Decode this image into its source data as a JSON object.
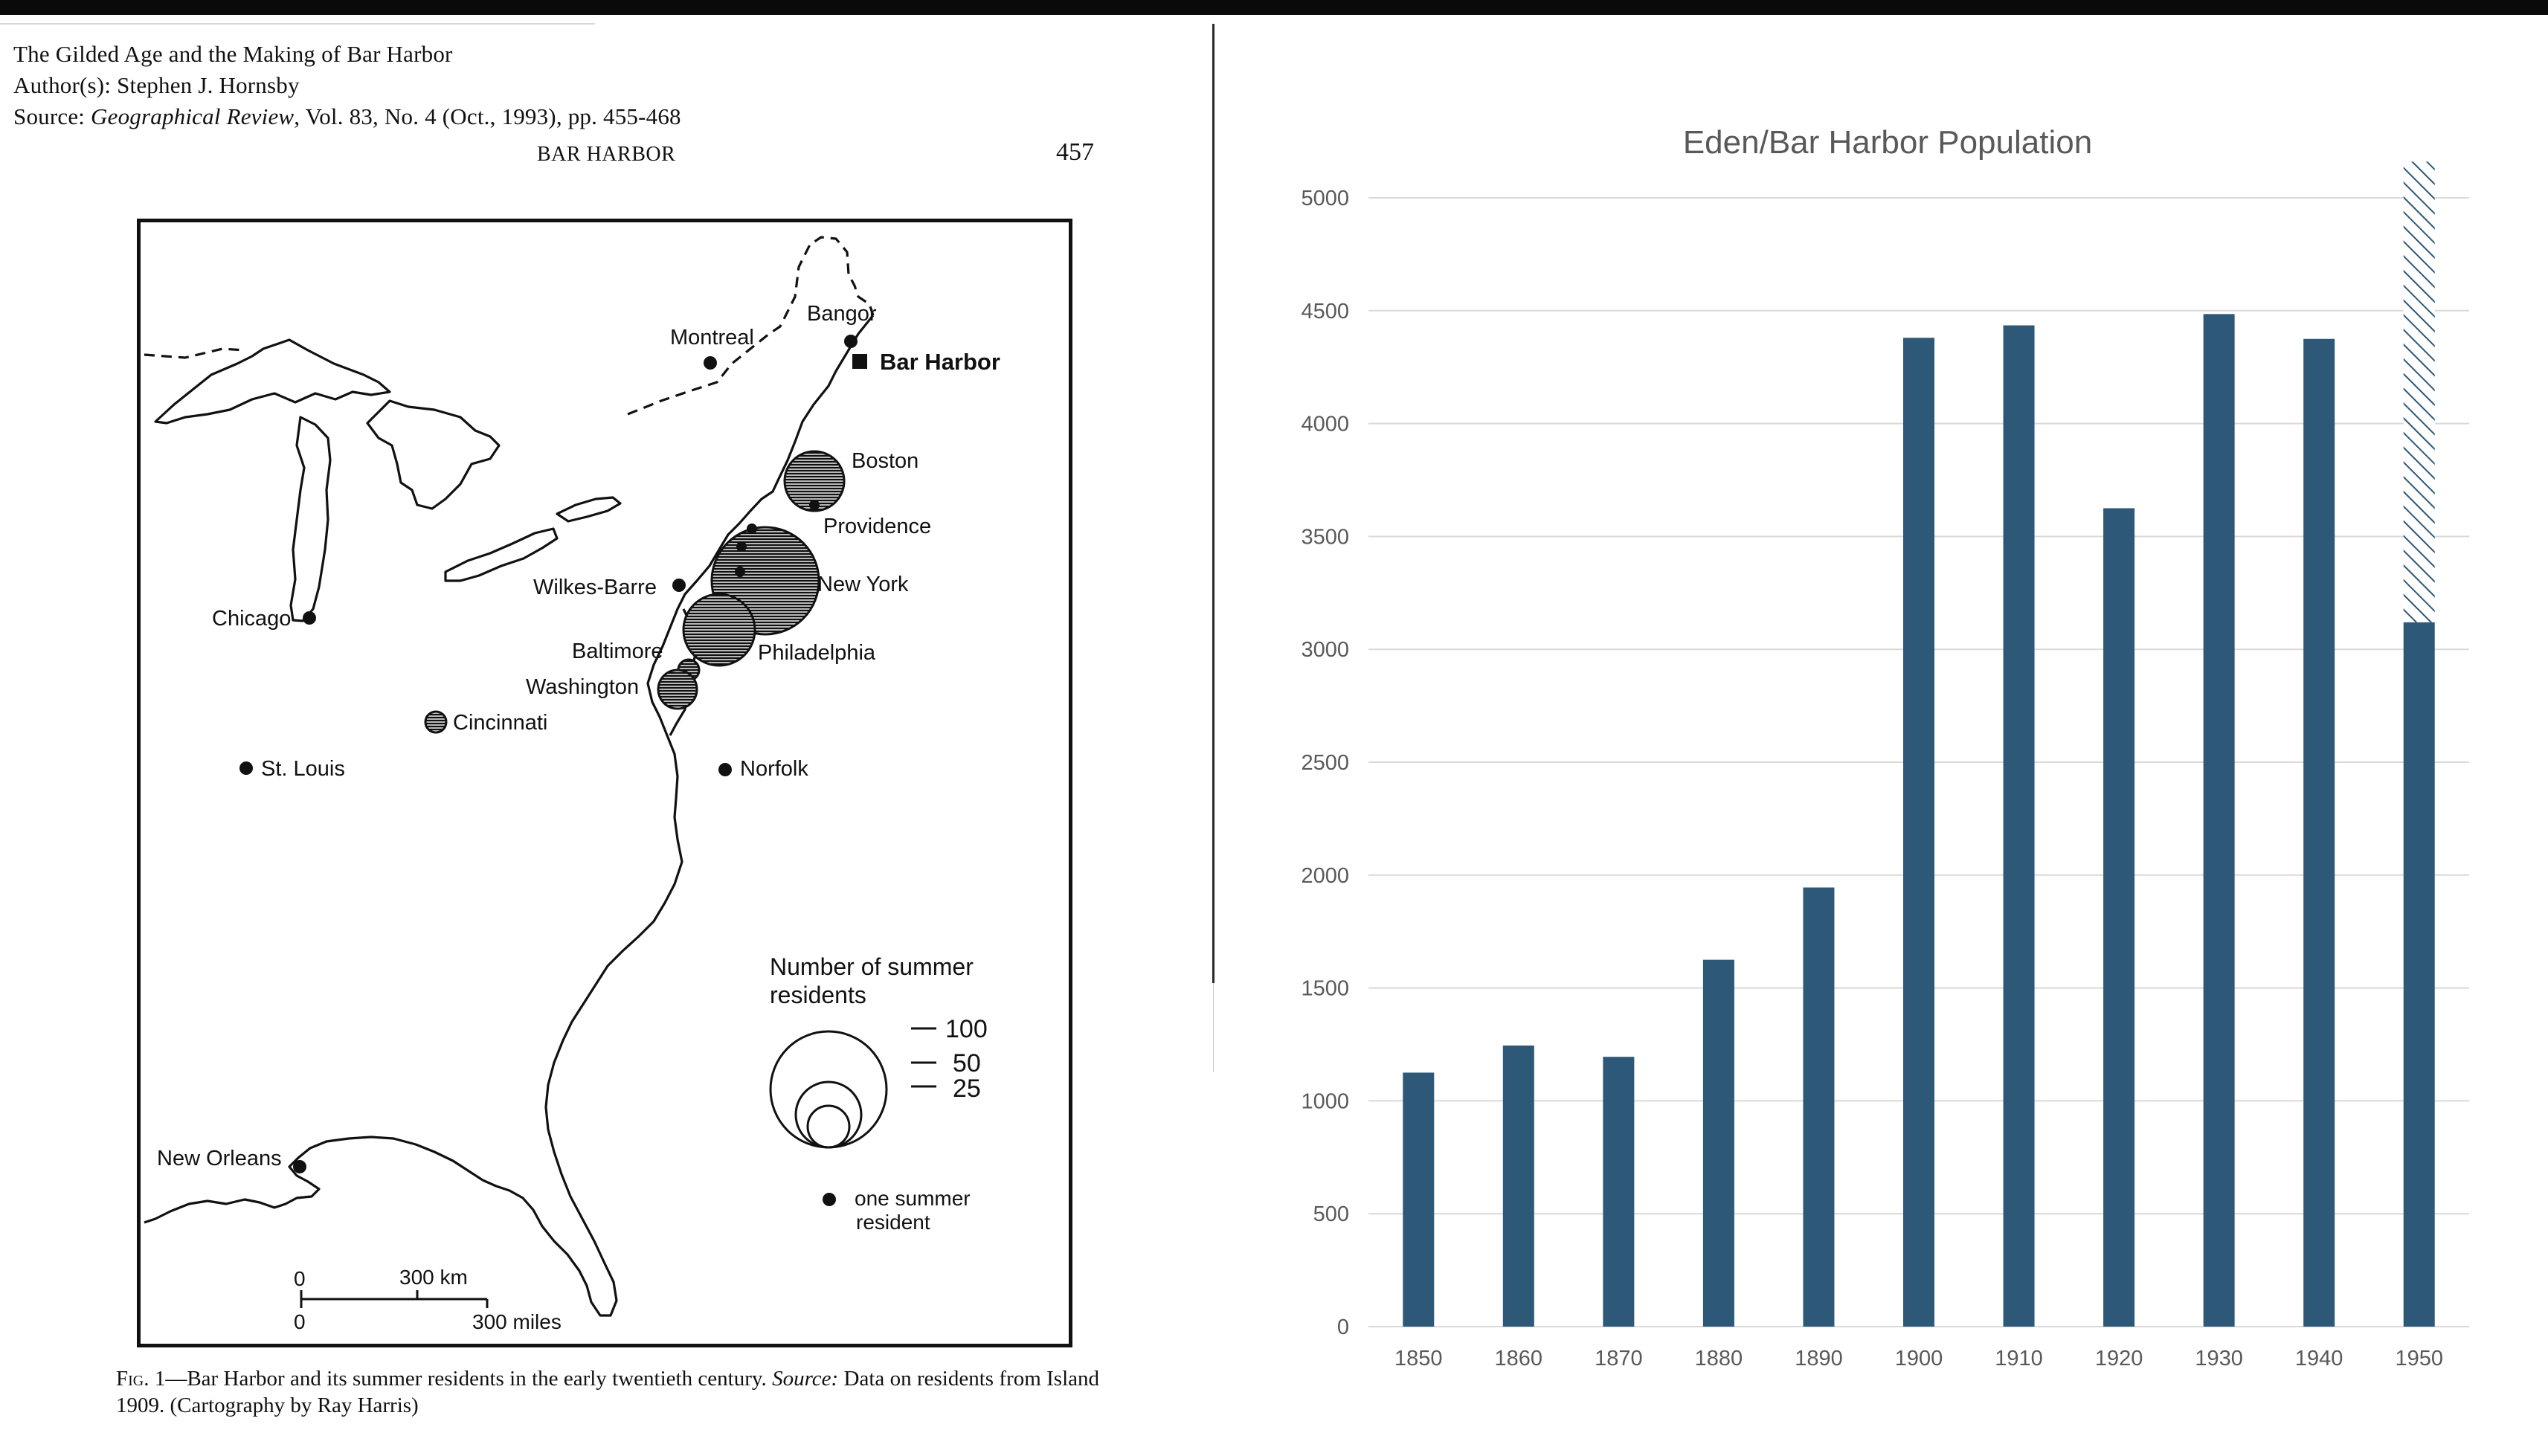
{
  "paper": {
    "title": "The Gilded Age and the Making of Bar Harbor",
    "authors": "Author(s): Stephen J. Hornsby",
    "source_prefix": "Source: ",
    "source_journal": "Geographical Review",
    "source_rest": ", Vol. 83, No. 4 (Oct., 1993), pp. 455-468",
    "running_head": "BAR HARBOR",
    "page_number": "457",
    "caption_fig": "Fig. 1",
    "caption_text": "—Bar Harbor and its summer residents in the early twentieth century. ",
    "caption_source_label": "Source:",
    "caption_source_text": " Data on residents from Island 1909. (Cartography by Ray Harris)"
  },
  "map": {
    "cities": {
      "montreal": "Montreal",
      "bangor": "Bangor",
      "bar_harbor": "Bar Harbor",
      "boston": "Boston",
      "providence": "Providence",
      "new_york": "New York",
      "wilkes_barre": "Wilkes-Barre",
      "chicago": "Chicago",
      "baltimore": "Baltimore",
      "philadelphia": "Philadelphia",
      "washington": "Washington",
      "cincinnati": "Cincinnati",
      "st_louis": "St. Louis",
      "norfolk": "Norfolk",
      "new_orleans": "New Orleans"
    },
    "legend": {
      "title_line1": "Number of summer",
      "title_line2": "residents",
      "values": [
        "100",
        "50",
        "25"
      ],
      "dot_line1": "one summer",
      "dot_line2": "resident"
    },
    "scale": {
      "zero_km": "0",
      "km_label": "300 km",
      "zero_mi": "0",
      "mi_label": "300 miles"
    }
  },
  "chart_data": {
    "type": "bar",
    "title": "Eden/Bar Harbor Population",
    "xlabel": "",
    "ylabel": "",
    "categories": [
      "1850",
      "1860",
      "1870",
      "1880",
      "1890",
      "1900",
      "1910",
      "1920",
      "1930",
      "1940",
      "1950"
    ],
    "values": [
      1125,
      1245,
      1195,
      1625,
      1945,
      4380,
      4435,
      3625,
      4485,
      4375,
      3120
    ],
    "hatched_extension": {
      "category": "1950",
      "from": 3120,
      "to": 5160
    },
    "ylim": [
      0,
      5000
    ],
    "yticks": [
      "0",
      "500",
      "1000",
      "1500",
      "2000",
      "2500",
      "3000",
      "3500",
      "4000",
      "4500",
      "5000"
    ],
    "grid": true,
    "bar_color": "#2e5878",
    "gridline_color": "#d9d9d9"
  }
}
